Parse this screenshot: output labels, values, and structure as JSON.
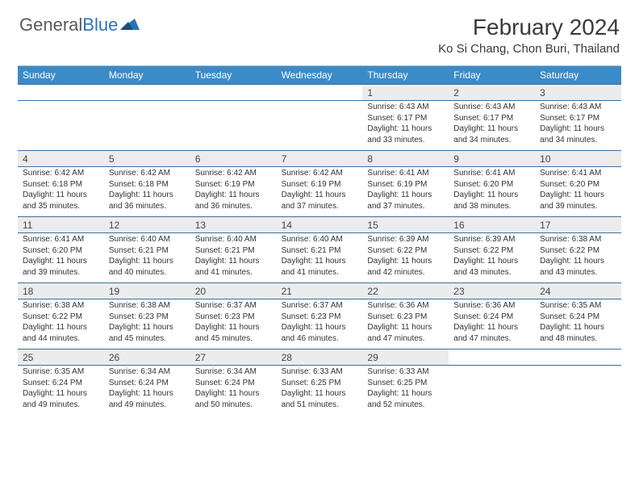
{
  "logo": {
    "text1": "General",
    "text2": "Blue"
  },
  "title": "February 2024",
  "location": "Ko Si Chang, Chon Buri, Thailand",
  "colors": {
    "header_bg": "#3b8bc9",
    "header_text": "#ffffff",
    "daynum_bg": "#ececec",
    "week_border": "#3b6fa0",
    "logo_gray": "#5a5a5a",
    "logo_blue": "#2d72b5"
  },
  "day_names": [
    "Sunday",
    "Monday",
    "Tuesday",
    "Wednesday",
    "Thursday",
    "Friday",
    "Saturday"
  ],
  "weeks": [
    {
      "cells": [
        {
          "num": "",
          "detail": ""
        },
        {
          "num": "",
          "detail": ""
        },
        {
          "num": "",
          "detail": ""
        },
        {
          "num": "",
          "detail": ""
        },
        {
          "num": "1",
          "detail": "Sunrise: 6:43 AM\nSunset: 6:17 PM\nDaylight: 11 hours and 33 minutes."
        },
        {
          "num": "2",
          "detail": "Sunrise: 6:43 AM\nSunset: 6:17 PM\nDaylight: 11 hours and 34 minutes."
        },
        {
          "num": "3",
          "detail": "Sunrise: 6:43 AM\nSunset: 6:17 PM\nDaylight: 11 hours and 34 minutes."
        }
      ]
    },
    {
      "cells": [
        {
          "num": "4",
          "detail": "Sunrise: 6:42 AM\nSunset: 6:18 PM\nDaylight: 11 hours and 35 minutes."
        },
        {
          "num": "5",
          "detail": "Sunrise: 6:42 AM\nSunset: 6:18 PM\nDaylight: 11 hours and 36 minutes."
        },
        {
          "num": "6",
          "detail": "Sunrise: 6:42 AM\nSunset: 6:19 PM\nDaylight: 11 hours and 36 minutes."
        },
        {
          "num": "7",
          "detail": "Sunrise: 6:42 AM\nSunset: 6:19 PM\nDaylight: 11 hours and 37 minutes."
        },
        {
          "num": "8",
          "detail": "Sunrise: 6:41 AM\nSunset: 6:19 PM\nDaylight: 11 hours and 37 minutes."
        },
        {
          "num": "9",
          "detail": "Sunrise: 6:41 AM\nSunset: 6:20 PM\nDaylight: 11 hours and 38 minutes."
        },
        {
          "num": "10",
          "detail": "Sunrise: 6:41 AM\nSunset: 6:20 PM\nDaylight: 11 hours and 39 minutes."
        }
      ]
    },
    {
      "cells": [
        {
          "num": "11",
          "detail": "Sunrise: 6:41 AM\nSunset: 6:20 PM\nDaylight: 11 hours and 39 minutes."
        },
        {
          "num": "12",
          "detail": "Sunrise: 6:40 AM\nSunset: 6:21 PM\nDaylight: 11 hours and 40 minutes."
        },
        {
          "num": "13",
          "detail": "Sunrise: 6:40 AM\nSunset: 6:21 PM\nDaylight: 11 hours and 41 minutes."
        },
        {
          "num": "14",
          "detail": "Sunrise: 6:40 AM\nSunset: 6:21 PM\nDaylight: 11 hours and 41 minutes."
        },
        {
          "num": "15",
          "detail": "Sunrise: 6:39 AM\nSunset: 6:22 PM\nDaylight: 11 hours and 42 minutes."
        },
        {
          "num": "16",
          "detail": "Sunrise: 6:39 AM\nSunset: 6:22 PM\nDaylight: 11 hours and 43 minutes."
        },
        {
          "num": "17",
          "detail": "Sunrise: 6:38 AM\nSunset: 6:22 PM\nDaylight: 11 hours and 43 minutes."
        }
      ]
    },
    {
      "cells": [
        {
          "num": "18",
          "detail": "Sunrise: 6:38 AM\nSunset: 6:22 PM\nDaylight: 11 hours and 44 minutes."
        },
        {
          "num": "19",
          "detail": "Sunrise: 6:38 AM\nSunset: 6:23 PM\nDaylight: 11 hours and 45 minutes."
        },
        {
          "num": "20",
          "detail": "Sunrise: 6:37 AM\nSunset: 6:23 PM\nDaylight: 11 hours and 45 minutes."
        },
        {
          "num": "21",
          "detail": "Sunrise: 6:37 AM\nSunset: 6:23 PM\nDaylight: 11 hours and 46 minutes."
        },
        {
          "num": "22",
          "detail": "Sunrise: 6:36 AM\nSunset: 6:23 PM\nDaylight: 11 hours and 47 minutes."
        },
        {
          "num": "23",
          "detail": "Sunrise: 6:36 AM\nSunset: 6:24 PM\nDaylight: 11 hours and 47 minutes."
        },
        {
          "num": "24",
          "detail": "Sunrise: 6:35 AM\nSunset: 6:24 PM\nDaylight: 11 hours and 48 minutes."
        }
      ]
    },
    {
      "cells": [
        {
          "num": "25",
          "detail": "Sunrise: 6:35 AM\nSunset: 6:24 PM\nDaylight: 11 hours and 49 minutes."
        },
        {
          "num": "26",
          "detail": "Sunrise: 6:34 AM\nSunset: 6:24 PM\nDaylight: 11 hours and 49 minutes."
        },
        {
          "num": "27",
          "detail": "Sunrise: 6:34 AM\nSunset: 6:24 PM\nDaylight: 11 hours and 50 minutes."
        },
        {
          "num": "28",
          "detail": "Sunrise: 6:33 AM\nSunset: 6:25 PM\nDaylight: 11 hours and 51 minutes."
        },
        {
          "num": "29",
          "detail": "Sunrise: 6:33 AM\nSunset: 6:25 PM\nDaylight: 11 hours and 52 minutes."
        },
        {
          "num": "",
          "detail": ""
        },
        {
          "num": "",
          "detail": ""
        }
      ]
    }
  ]
}
